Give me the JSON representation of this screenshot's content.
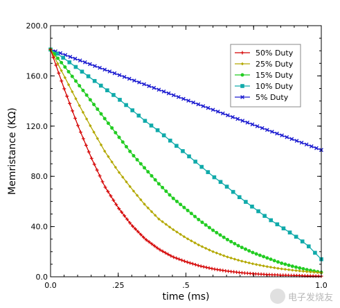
{
  "chart_data": {
    "type": "line",
    "xlabel": "time (ms)",
    "ylabel": "Memristance (KΩ)",
    "xlim": [
      0,
      1.0
    ],
    "ylim": [
      0,
      200
    ],
    "x_ticks": [
      0,
      0.25,
      0.5,
      0.75,
      1.0
    ],
    "x_tick_labels": [
      "0.0",
      ".25",
      ".5",
      "",
      "1.0"
    ],
    "y_ticks": [
      0,
      40,
      80,
      120,
      160,
      200
    ],
    "y_tick_labels": [
      "0.0",
      "40.0",
      "80.0",
      "120.0",
      "160.0",
      "200.0"
    ],
    "legend_position": "top-right",
    "initial_value": 181,
    "series": [
      {
        "name": "50% Duty",
        "color": "#d40000",
        "marker": "plus",
        "x_start": 0,
        "x_end": 1.0,
        "points": 100,
        "values": [
          181,
          150,
          121,
          95,
          72,
          55,
          41,
          30,
          22,
          16,
          12,
          8.7,
          6.3,
          4.6,
          3.3,
          2.4,
          1.8,
          1.3,
          1.0,
          0.7,
          0.5
        ]
      },
      {
        "name": "25% Duty",
        "color": "#b3a800",
        "marker": "diamond",
        "x_start": 0,
        "x_end": 1.0,
        "points": 76,
        "values": [
          181,
          160,
          139,
          119,
          100,
          84,
          70,
          57,
          46,
          38,
          31,
          25,
          20,
          16,
          12.8,
          10.2,
          8.1,
          6.4,
          5.1,
          4.0,
          3.2
        ]
      },
      {
        "name": "15% Duty",
        "color": "#22cc22",
        "marker": "circle",
        "x_start": 0,
        "x_end": 1.0,
        "points": 76,
        "values": [
          181,
          168,
          154,
          140,
          126,
          112,
          98,
          86,
          74,
          63,
          54,
          45,
          37,
          30,
          24,
          19,
          15,
          11,
          8,
          5.5,
          3.5
        ]
      },
      {
        "name": "10% Duty",
        "color": "#10aaaa",
        "marker": "square",
        "x_start": 0,
        "x_end": 1.0,
        "points": 44,
        "values": [
          181,
          174,
          166,
          158,
          150,
          142,
          133,
          124,
          116,
          107,
          98,
          89,
          80,
          72,
          63,
          55,
          47,
          40,
          33,
          25,
          14
        ]
      },
      {
        "name": "5% Duty",
        "color": "#1a1ad0",
        "marker": "x",
        "x_start": 0,
        "x_end": 1.0,
        "points": 56,
        "values": [
          181,
          177,
          173,
          169,
          165,
          161,
          157,
          153,
          149,
          145,
          141,
          137,
          133,
          129,
          125,
          121,
          117,
          113,
          109,
          105,
          101
        ]
      }
    ]
  },
  "watermark": {
    "text": "电子发烧友"
  }
}
